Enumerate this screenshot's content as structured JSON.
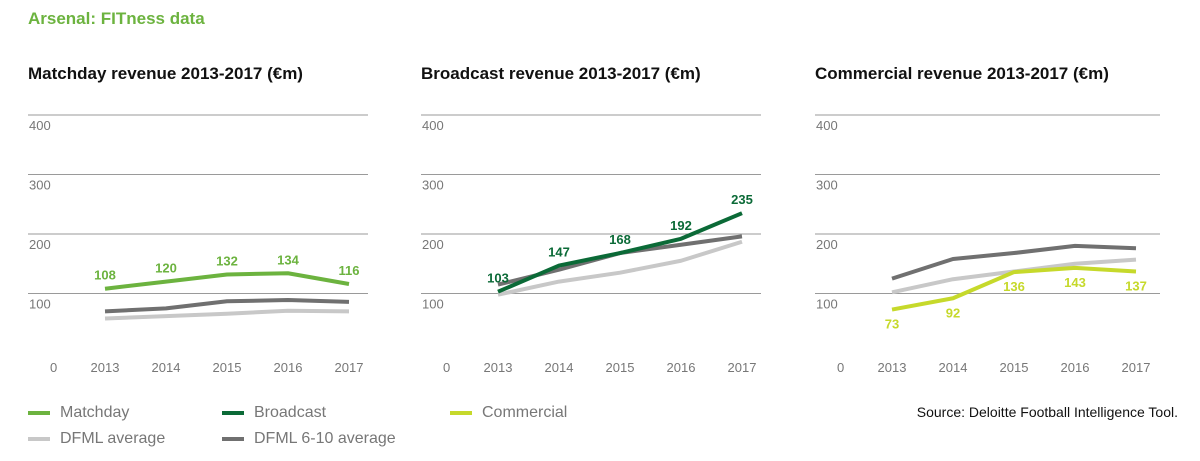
{
  "header": {
    "title": "Arsenal: FITness data"
  },
  "colors": {
    "matchday": "#6cb33f",
    "broadcast": "#0b6a37",
    "commercial": "#c6d92b",
    "dfml_average": "#c8c8c8",
    "dfml_6_10_average": "#707070",
    "gridline": "#9a9a9a",
    "axis_text": "#777777"
  },
  "legend": {
    "items": [
      {
        "label": "Matchday",
        "color": "#6cb33f"
      },
      {
        "label": "Broadcast",
        "color": "#0b6a37"
      },
      {
        "label": "Commercial",
        "color": "#c6d92b"
      },
      {
        "label": "DFML average",
        "color": "#c8c8c8"
      },
      {
        "label": "DFML 6-10 average",
        "color": "#707070"
      }
    ]
  },
  "source": "Source: Deloitte Football Intelligence Tool.",
  "chart_data": [
    {
      "type": "line",
      "title": "Matchday revenue 2013-2017 (€m)",
      "x": [
        "2013",
        "2014",
        "2015",
        "2016",
        "2017"
      ],
      "ylim": [
        0,
        400
      ],
      "yticks": [
        "0",
        "100",
        "200",
        "300",
        "400"
      ],
      "series": [
        {
          "name": "DFML average",
          "values": [
            58,
            62,
            66,
            71,
            70
          ],
          "color": "#c8c8c8",
          "labeled": false
        },
        {
          "name": "DFML 6-10 average",
          "values": [
            70,
            75,
            87,
            89,
            86
          ],
          "color": "#707070",
          "labeled": false
        },
        {
          "name": "Matchday",
          "values": [
            108,
            120,
            132,
            134,
            116
          ],
          "labels": [
            "108",
            "120",
            "132",
            "134",
            "116"
          ],
          "color": "#6cb33f",
          "labeled": true,
          "label_pos": "above"
        }
      ]
    },
    {
      "type": "line",
      "title": "Broadcast revenue 2013-2017 (€m)",
      "x": [
        "2013",
        "2014",
        "2015",
        "2016",
        "2017"
      ],
      "ylim": [
        0,
        400
      ],
      "yticks": [
        "0",
        "100",
        "200",
        "300",
        "400"
      ],
      "series": [
        {
          "name": "DFML average",
          "values": [
            98,
            120,
            135,
            155,
            187
          ],
          "color": "#c8c8c8",
          "labeled": false
        },
        {
          "name": "DFML 6-10 average",
          "values": [
            115,
            140,
            168,
            182,
            196
          ],
          "color": "#707070",
          "labeled": false
        },
        {
          "name": "Broadcast",
          "values": [
            103,
            147,
            168,
            192,
            235
          ],
          "labels": [
            "103",
            "147",
            "168",
            "192",
            "235"
          ],
          "color": "#0b6a37",
          "labeled": true,
          "label_pos": "above"
        }
      ]
    },
    {
      "type": "line",
      "title": "Commercial revenue 2013-2017 (€m)",
      "x": [
        "2013",
        "2014",
        "2015",
        "2016",
        "2017"
      ],
      "ylim": [
        0,
        400
      ],
      "yticks": [
        "0",
        "100",
        "200",
        "300",
        "400"
      ],
      "series": [
        {
          "name": "DFML average",
          "values": [
            102,
            124,
            137,
            150,
            157
          ],
          "color": "#c8c8c8",
          "labeled": false
        },
        {
          "name": "DFML 6-10 average",
          "values": [
            125,
            158,
            168,
            180,
            176
          ],
          "color": "#707070",
          "labeled": false
        },
        {
          "name": "Commercial",
          "values": [
            73,
            92,
            136,
            143,
            137
          ],
          "labels": [
            "73",
            "92",
            "136",
            "143",
            "137"
          ],
          "color": "#c6d92b",
          "labeled": true,
          "label_pos": "below"
        }
      ]
    }
  ]
}
